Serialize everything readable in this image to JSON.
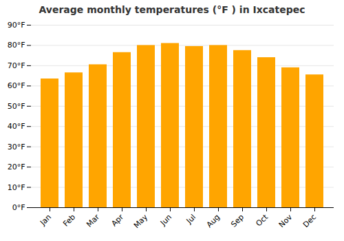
{
  "chart_data": {
    "type": "bar",
    "title": "Average monthly temperatures (°F ) in Ixcatepec",
    "categories": [
      "Jan",
      "Feb",
      "Mar",
      "Apr",
      "May",
      "Jun",
      "Jul",
      "Aug",
      "Sep",
      "Oct",
      "Nov",
      "Dec"
    ],
    "values": [
      63.5,
      66.5,
      70.5,
      76.5,
      80.0,
      81.0,
      79.5,
      80.0,
      77.5,
      74.0,
      69.0,
      65.5
    ],
    "color": "#FFA500",
    "ylim": [
      0,
      90
    ],
    "yticks": [
      {
        "value": 0,
        "label": "0°F"
      },
      {
        "value": 10,
        "label": "10°F"
      },
      {
        "value": 20,
        "label": "20°F"
      },
      {
        "value": 30,
        "label": "30°F"
      },
      {
        "value": 40,
        "label": "40°F"
      },
      {
        "value": 50,
        "label": "50°F"
      },
      {
        "value": 60,
        "label": "60°F"
      },
      {
        "value": 70,
        "label": "70°F"
      },
      {
        "value": 80,
        "label": "80°F"
      },
      {
        "value": 90,
        "label": "90°F"
      }
    ],
    "grid": true
  }
}
